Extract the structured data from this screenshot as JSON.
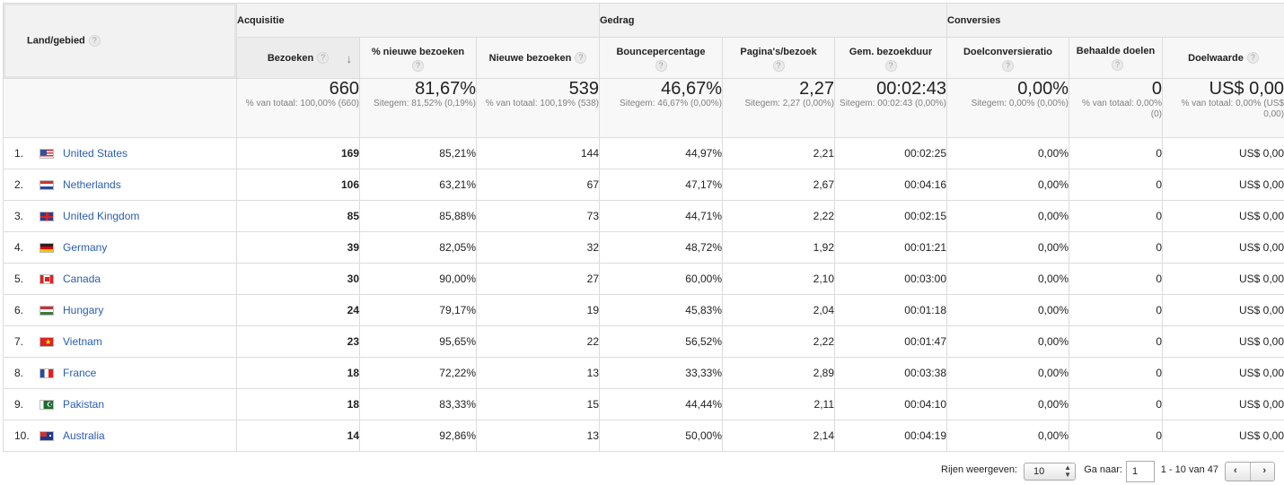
{
  "dimension_header": "Land/gebied",
  "groups": {
    "acquisitie": "Acquisitie",
    "gedrag": "Gedrag",
    "conversies": "Conversies"
  },
  "columns": [
    "Bezoeken",
    "% nieuwe bezoeken",
    "Nieuwe bezoeken",
    "Bouncepercentage",
    "Pagina's/bezoek",
    "Gem. bezoekduur",
    "Doelconversieratio",
    "Behaalde doelen",
    "Doelwaarde"
  ],
  "help_icon": "?",
  "sort_indicator": "↓",
  "totals": [
    {
      "big": "660",
      "sub": "% van totaal: 100,00% (660)"
    },
    {
      "big": "81,67%",
      "sub": "Sitegem: 81,52% (0,19%)"
    },
    {
      "big": "539",
      "sub": "% van totaal: 100,19% (538)"
    },
    {
      "big": "46,67%",
      "sub": "Sitegem: 46,67% (0,00%)"
    },
    {
      "big": "2,27",
      "sub": "Sitegem: 2,27 (0,00%)"
    },
    {
      "big": "00:02:43",
      "sub": "Sitegem: 00:02:43 (0,00%)"
    },
    {
      "big": "0,00%",
      "sub": "Sitegem: 0,00% (0,00%)"
    },
    {
      "big": "0",
      "sub": "% van totaal: 0,00% (0)"
    },
    {
      "big": "US$ 0,00",
      "sub": "% van totaal: 0,00% (US$ 0,00)"
    }
  ],
  "rows": [
    {
      "idx": "1.",
      "country": "United States",
      "flag": "us-flag-icon",
      "values": [
        "169",
        "85,21%",
        "144",
        "44,97%",
        "2,21",
        "00:02:25",
        "0,00%",
        "0",
        "US$ 0,00"
      ]
    },
    {
      "idx": "2.",
      "country": "Netherlands",
      "flag": "nl-flag-icon",
      "values": [
        "106",
        "63,21%",
        "67",
        "47,17%",
        "2,67",
        "00:04:16",
        "0,00%",
        "0",
        "US$ 0,00"
      ]
    },
    {
      "idx": "3.",
      "country": "United Kingdom",
      "flag": "gb-flag-icon",
      "values": [
        "85",
        "85,88%",
        "73",
        "44,71%",
        "2,22",
        "00:02:15",
        "0,00%",
        "0",
        "US$ 0,00"
      ]
    },
    {
      "idx": "4.",
      "country": "Germany",
      "flag": "de-flag-icon",
      "values": [
        "39",
        "82,05%",
        "32",
        "48,72%",
        "1,92",
        "00:01:21",
        "0,00%",
        "0",
        "US$ 0,00"
      ]
    },
    {
      "idx": "5.",
      "country": "Canada",
      "flag": "ca-flag-icon",
      "values": [
        "30",
        "90,00%",
        "27",
        "60,00%",
        "2,10",
        "00:03:00",
        "0,00%",
        "0",
        "US$ 0,00"
      ]
    },
    {
      "idx": "6.",
      "country": "Hungary",
      "flag": "hu-flag-icon",
      "values": [
        "24",
        "79,17%",
        "19",
        "45,83%",
        "2,04",
        "00:01:18",
        "0,00%",
        "0",
        "US$ 0,00"
      ]
    },
    {
      "idx": "7.",
      "country": "Vietnam",
      "flag": "vn-flag-icon",
      "values": [
        "23",
        "95,65%",
        "22",
        "56,52%",
        "2,22",
        "00:01:47",
        "0,00%",
        "0",
        "US$ 0,00"
      ]
    },
    {
      "idx": "8.",
      "country": "France",
      "flag": "fr-flag-icon",
      "values": [
        "18",
        "72,22%",
        "13",
        "33,33%",
        "2,89",
        "00:03:38",
        "0,00%",
        "0",
        "US$ 0,00"
      ]
    },
    {
      "idx": "9.",
      "country": "Pakistan",
      "flag": "pk-flag-icon",
      "values": [
        "18",
        "83,33%",
        "15",
        "44,44%",
        "2,11",
        "00:04:10",
        "0,00%",
        "0",
        "US$ 0,00"
      ]
    },
    {
      "idx": "10.",
      "country": "Australia",
      "flag": "au-flag-icon",
      "values": [
        "14",
        "92,86%",
        "13",
        "50,00%",
        "2,14",
        "00:04:19",
        "0,00%",
        "0",
        "US$ 0,00"
      ]
    }
  ],
  "footer": {
    "rows_label": "Rijen weergeven:",
    "rows_value": "10",
    "goto_label": "Ga naar:",
    "goto_value": "1",
    "range": "1 - 10 van 47",
    "prev": "‹",
    "next": "›"
  }
}
